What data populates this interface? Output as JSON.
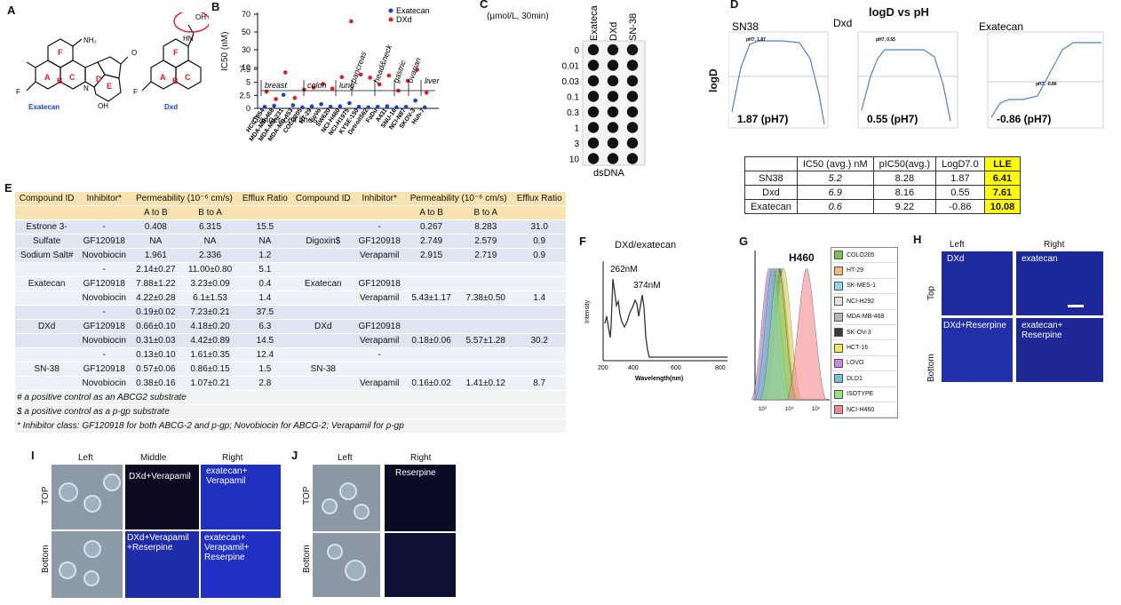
{
  "panels": {
    "A": "A",
    "B": "B",
    "C": "C",
    "D": "D",
    "E": "E",
    "F": "F",
    "G": "G",
    "H": "H",
    "I": "I",
    "J": "J"
  },
  "panel_a": {
    "exatecan_label": "Exatecan",
    "dxd_label": "Dxd",
    "ring_letters": [
      "A",
      "B",
      "C",
      "D",
      "E",
      "F"
    ],
    "nh2": "NH₂",
    "oh": "OH",
    "f": "F",
    "o": "O",
    "n": "N",
    "hn": "HN",
    "oh_dxd": "OH"
  },
  "panel_b": {
    "ylabel": "IC50 (nM)",
    "xlabel": "Cancer cell lines",
    "legend": [
      "Exatecan",
      "DXd"
    ],
    "yticks_top": [
      "70",
      "50",
      "30",
      "10"
    ],
    "yticks_bottom": [
      "7.5",
      "5",
      "2.5",
      "0"
    ],
    "groups": [
      "breast",
      "colon",
      "lung",
      "pancreas",
      "head&neck",
      "gastric",
      "ovarian",
      "liver"
    ],
    "cell_lines": [
      "HCC1954",
      "MDA-MB-468",
      "MDA-MB-231",
      "MDA-MB-453",
      "COLO205",
      "HT-29",
      "LoVo",
      "SW620",
      "NCI-H460",
      "NCI-H1975",
      "KYSE-150",
      "Detroit562",
      "FaDu",
      "A431",
      "SNU-16",
      "NCI-N87",
      "SKOV-3",
      "Huh-7"
    ],
    "colors": {
      "exatecan": "#1a3fd6",
      "dxd": "#e01b24"
    },
    "chart_data": {
      "type": "scatter",
      "categories": [
        "1",
        "2",
        "3",
        "4",
        "5",
        "6",
        "7",
        "8",
        "9",
        "10",
        "11",
        "12",
        "13",
        "14",
        "15",
        "16",
        "17",
        "18"
      ],
      "series": [
        {
          "name": "Exatecan",
          "values": [
            0.3,
            0.5,
            2.6,
            0.6,
            0.2,
            0.4,
            0.8,
            0.3,
            0.4,
            1.0,
            0.3,
            0.2,
            0.3,
            0.4,
            0.2,
            0.3,
            1.5,
            0.2
          ]
        },
        {
          "name": "DXd",
          "values": [
            3.2,
            1.8,
            6.9,
            2.0,
            3.6,
            4.0,
            4.7,
            3.8,
            6.0,
            62,
            6.5,
            5.9,
            4.6,
            6.3,
            3.4,
            5.3,
            7.4,
            3.0
          ]
        }
      ]
    }
  },
  "panel_c": {
    "unit": "(µmol/L, 30min)",
    "columns": [
      "Exatecan",
      "DXd",
      "SN-38"
    ],
    "rows": [
      "0",
      "0.01",
      "0.03",
      "0.1",
      "0.3",
      "1",
      "3",
      "10"
    ],
    "footer": "dsDNA"
  },
  "panel_d": {
    "title": "logD vs pH",
    "ylabel": "logD",
    "xlabel": "pH",
    "plots": [
      {
        "name": "SN38",
        "value": "1.87 (pH7)",
        "annot": "pH7, 1.87"
      },
      {
        "name": "Dxd",
        "value": "0.55 (pH7)",
        "annot": "pH7, 0.55"
      },
      {
        "name": "Exatecan",
        "value": "-0.86 (pH7)",
        "annot": "pH7, -0.86"
      }
    ],
    "table": {
      "headers": [
        "",
        "IC50 (avg.) nM",
        "pIC50(avg.)",
        "LogD7.0",
        "LLE"
      ],
      "rows": [
        [
          "SN38",
          "5.2",
          "8.28",
          "1.87",
          "6.41"
        ],
        [
          "Dxd",
          "6.9",
          "8.16",
          "0.55",
          "7.61"
        ],
        [
          "Exatecan",
          "0.6",
          "9.22",
          "-0.86",
          "10.08"
        ]
      ]
    }
  },
  "panel_e": {
    "header": [
      "Compound ID",
      "Inhibitor*",
      "Permeability (10⁻⁶ cm/s)",
      "",
      "Efflux Ratio",
      "Compound ID",
      "Inhibitor*",
      "Permeability (10⁻⁶ cm/s)",
      "",
      "Efflux Ratio"
    ],
    "subheader": [
      "A to B",
      "B to A",
      "A to B",
      "B to A"
    ],
    "rows": [
      [
        "Estrone 3-",
        "-",
        "0.408",
        "6.315",
        "15.5",
        "",
        "-",
        "0.267",
        "8.283",
        "31.0"
      ],
      [
        "Sulfate",
        "GF120918",
        "NA",
        "NA",
        "NA",
        "Digoxin$",
        "GF120918",
        "2.749",
        "2.579",
        "0.9"
      ],
      [
        "Sodium Salt#",
        "Novobiocin",
        "1.961",
        "2.336",
        "1.2",
        "",
        "Verapamil",
        "2.915",
        "2.719",
        "0.9"
      ],
      [
        "",
        "-",
        "2.14±0.27",
        "11.00±0.80",
        "5.1",
        "",
        "",
        "",
        "",
        ""
      ],
      [
        "Exatecan",
        "GF120918",
        "7.88±1.22",
        "3.23±0.09",
        "0.4",
        "Exatecan",
        "GF120918",
        "",
        "",
        ""
      ],
      [
        "",
        "Novobiocin",
        "4.22±0.28",
        "6.1±1.53",
        "1.4",
        "",
        "Verapamil",
        "5.43±1.17",
        "7.38±0.50",
        "1.4"
      ],
      [
        "",
        "-",
        "0.19±0.02",
        "7.23±0.21",
        "37.5",
        "",
        "",
        "",
        "",
        ""
      ],
      [
        "DXd",
        "GF120918",
        "0.66±0.10",
        "4.18±0.20",
        "6.3",
        "DXd",
        "GF120918",
        "",
        "",
        ""
      ],
      [
        "",
        "Novobiocin",
        "0.31±0.03",
        "4.42±0.89",
        "14.5",
        "",
        "Verapamil",
        "0.18±0.06",
        "5.57±1.28",
        "30.2"
      ],
      [
        "",
        "-",
        "0.13±0.10",
        "1.61±0.35",
        "12.4",
        "",
        "-",
        "",
        "",
        ""
      ],
      [
        "SN-38",
        "GF120918",
        "0.57±0.06",
        "0.86±0.15",
        "1.5",
        "SN-38",
        "",
        "",
        "",
        ""
      ],
      [
        "",
        "Novobiocin",
        "0.38±0.16",
        "1.07±0.21",
        "2.8",
        "",
        "Verapamil",
        "0.16±0.02",
        "1.41±0.12",
        "8.7"
      ]
    ],
    "footnotes": [
      "# a positive control as an ABCG2 substrate",
      "$ a positive control as a p-gp substrate",
      "* Inhibitor class: GF120918 for both ABCG-2 and p-gp; Novobiocin for ABCG-2; Verapamil for p-gp"
    ]
  },
  "panel_f": {
    "title": "DXd/exatecan",
    "ylabel": "Intensity",
    "xlabel": "Wavelength(nm)",
    "xticks": [
      "200",
      "400",
      "600",
      "800"
    ],
    "peaks": [
      "262nM",
      "374nM"
    ]
  },
  "panel_g": {
    "title": "H460",
    "legend": [
      {
        "label": "COLO205",
        "color": "#7fbf5a"
      },
      {
        "label": "HT-29",
        "color": "#f2b97a"
      },
      {
        "label": "SK-MES-1",
        "color": "#8fd6f0"
      },
      {
        "label": "NCI-H292",
        "color": "#e2e2e2"
      },
      {
        "label": "MDA-MB-468",
        "color": "#b8b8b8"
      },
      {
        "label": "SK-OV-3",
        "color": "#3a3a3a"
      },
      {
        "label": "HCT-16",
        "color": "#f2e95a"
      },
      {
        "label": "LOVO",
        "color": "#c48be0"
      },
      {
        "label": "DLD1",
        "color": "#6fc3d9"
      },
      {
        "label": "ISOTYPE",
        "color": "#9be07a"
      },
      {
        "label": "NCI-H460",
        "color": "#f28b8b"
      }
    ],
    "xticks": [
      "10³",
      "10⁴",
      "10⁵"
    ]
  },
  "panel_h": {
    "cols": [
      "Left",
      "Right"
    ],
    "rows": [
      "Top",
      "Bottom"
    ],
    "captions": [
      "DXd",
      "exatecan",
      "DXd+Reserpine",
      "exatecan+\nReserpine"
    ]
  },
  "panel_i": {
    "cols": [
      "Left",
      "Middle",
      "Right"
    ],
    "rows": [
      "TOP",
      "Bottom"
    ],
    "captions": [
      "DXd+Verapamil",
      "exatecan+\nVerapamil",
      "DXd+Verapamil\n+Reserpine",
      "exatecan+\nVerapamil+\nReserpine"
    ]
  },
  "panel_j": {
    "cols": [
      "Left",
      "Right"
    ],
    "rows": [
      "TOP",
      "Bottom"
    ],
    "captions": [
      "Reserpine"
    ]
  }
}
